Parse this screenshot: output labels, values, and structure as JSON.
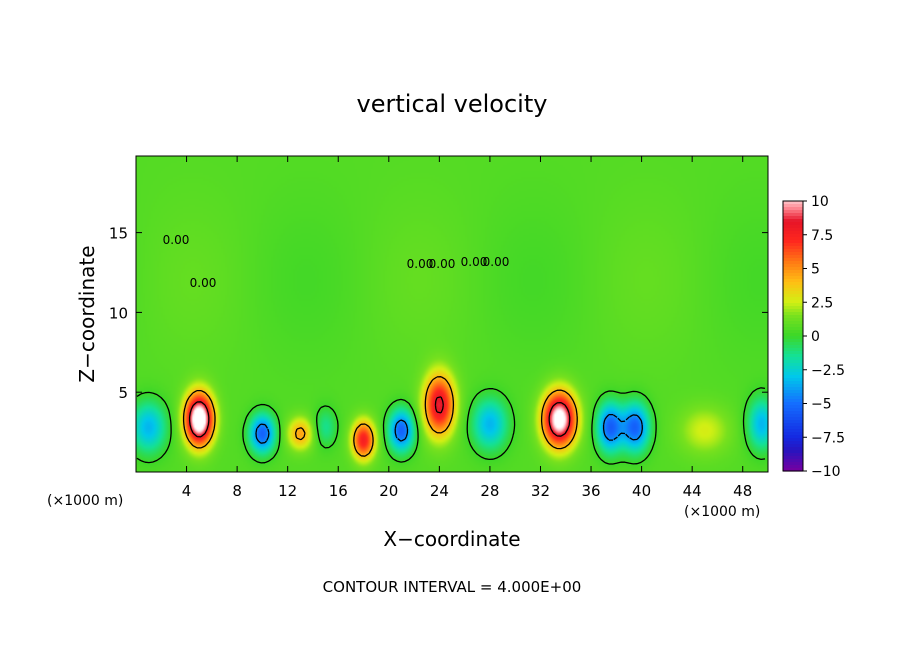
{
  "chart_data": {
    "type": "heatmap",
    "title": "vertical velocity",
    "xlabel": "X−coordinate",
    "ylabel": "Z−coordinate",
    "x_unit_left": "(×1000 m)",
    "x_unit_right": "(×1000 m)",
    "xlim": [
      0,
      50
    ],
    "ylim": [
      0,
      19.8
    ],
    "x_ticks": [
      4,
      8,
      12,
      16,
      20,
      24,
      28,
      32,
      36,
      40,
      44,
      48
    ],
    "y_ticks": [
      5,
      10,
      15
    ],
    "contour_interval_text": "CONTOUR INTERVAL = 4.000E+00",
    "contour_labels": [
      "0.00",
      "0.00",
      "0.00",
      "0.00",
      "0.00",
      "0.00"
    ],
    "colorbar": {
      "min": -10,
      "max": 10,
      "tick_labels": [
        "10",
        "7.5",
        "5",
        "2.5",
        "0",
        "−2.5",
        "−5",
        "−7.5",
        "−10"
      ],
      "tick_values": [
        10,
        7.5,
        5,
        2.5,
        0,
        -2.5,
        -5,
        -7.5,
        -10
      ]
    },
    "features": [
      {
        "x": 5.0,
        "z": 3.3,
        "value": 12,
        "sx": 1.1,
        "sz": 1.6
      },
      {
        "x": 10.0,
        "z": 2.4,
        "value": -6,
        "sx": 1.0,
        "sz": 1.2
      },
      {
        "x": 13.0,
        "z": 2.4,
        "value": 4,
        "sx": 1.0,
        "sz": 1.0
      },
      {
        "x": 15.0,
        "z": 2.8,
        "value": -2,
        "sx": 0.9,
        "sz": 1.2
      },
      {
        "x": 18.0,
        "z": 2.0,
        "value": 7,
        "sx": 0.9,
        "sz": 1.2
      },
      {
        "x": 21.0,
        "z": 2.6,
        "value": -6,
        "sx": 1.0,
        "sz": 1.3
      },
      {
        "x": 24.0,
        "z": 4.2,
        "value": 8,
        "sx": 1.2,
        "sz": 1.9
      },
      {
        "x": 28.0,
        "z": 3.0,
        "value": -4,
        "sx": 1.4,
        "sz": 1.6
      },
      {
        "x": 33.5,
        "z": 3.3,
        "value": 11,
        "sx": 1.3,
        "sz": 1.7
      },
      {
        "x": 37.5,
        "z": 2.8,
        "value": -6,
        "sx": 1.0,
        "sz": 1.5
      },
      {
        "x": 39.5,
        "z": 2.8,
        "value": -6,
        "sx": 1.1,
        "sz": 1.5
      },
      {
        "x": 45.0,
        "z": 2.6,
        "value": 2,
        "sx": 2.0,
        "sz": 1.5
      },
      {
        "x": 49.5,
        "z": 3.0,
        "value": -4,
        "sx": 1.1,
        "sz": 1.6
      },
      {
        "x": 1.0,
        "z": 2.8,
        "value": -4,
        "sx": 1.4,
        "sz": 1.6
      }
    ]
  }
}
